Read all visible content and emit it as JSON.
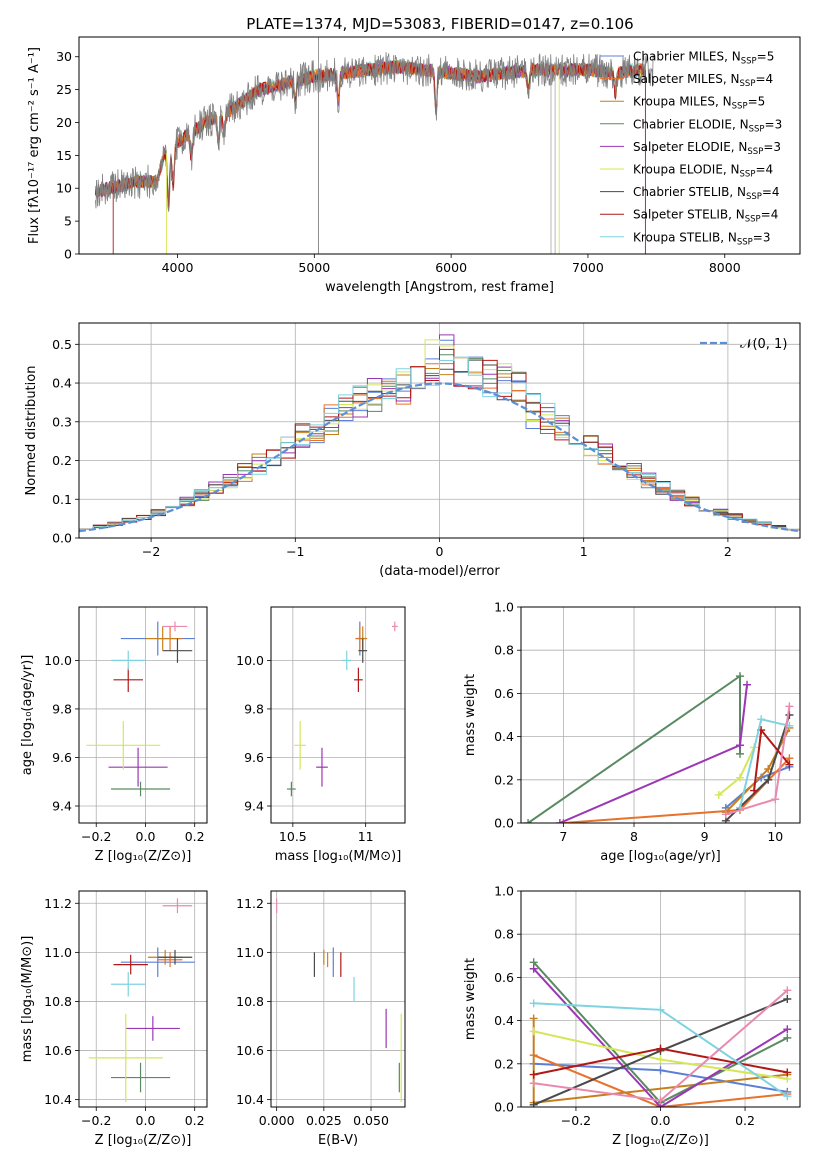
{
  "title": "PLATE=1374, MJD=53083, FIBERID=0147, z=0.106",
  "colors": {
    "chabrier_miles": "#5b7fd6",
    "salpeter_miles": "#e8712b",
    "kroupa_miles": "#c77f1e",
    "chabrier_elodie": "#5a8a62",
    "salpeter_elodie": "#9b36b5",
    "kroupa_elodie": "#d6e65a",
    "chabrier_stelib": "#4a4a4a",
    "salpeter_stelib": "#b21818",
    "kroupa_stelib": "#7fd3e0",
    "pink_extra": "#e88ab0"
  },
  "chart_data": [
    {
      "id": "spectrum",
      "type": "line",
      "xlabel": "wavelength [Angstrom, rest frame]",
      "ylabel": "Flux [fλ10⁻¹⁷ erg cm⁻² s⁻¹ A⁻¹]",
      "xlim": [
        3280,
        8550
      ],
      "ylim": [
        0,
        33
      ],
      "xticks": [
        4000,
        5000,
        6000,
        7000,
        8000
      ],
      "yticks": [
        0,
        5,
        10,
        15,
        20,
        25,
        30
      ],
      "legend": [
        {
          "label": "Chabrier MILES, N_SSP=5",
          "color": "#5b7fd6"
        },
        {
          "label": "Salpeter MILES, N_SSP=4",
          "color": "#e8712b"
        },
        {
          "label": "Kroupa MILES, N_SSP=5",
          "color": "#c77f1e"
        },
        {
          "label": "Chabrier ELODIE, N_SSP=3",
          "color": "#5a8a62"
        },
        {
          "label": "Salpeter ELODIE, N_SSP=3",
          "color": "#9b36b5"
        },
        {
          "label": "Kroupa ELODIE, N_SSP=4",
          "color": "#d6e65a"
        },
        {
          "label": "Chabrier STELIB, N_SSP=4",
          "color": "#4a4a4a"
        },
        {
          "label": "Salpeter STELIB, N_SSP=4",
          "color": "#b21818"
        },
        {
          "label": "Kroupa STELIB, N_SSP=3",
          "color": "#7fd3e0"
        }
      ],
      "legend_placement": "upper right",
      "continuum": [
        [
          3400,
          9.5
        ],
        [
          3500,
          10
        ],
        [
          3700,
          11
        ],
        [
          3850,
          11
        ],
        [
          3900,
          15
        ],
        [
          4000,
          17
        ],
        [
          4200,
          20
        ],
        [
          4300,
          21
        ],
        [
          4400,
          22
        ],
        [
          4600,
          25
        ],
        [
          4800,
          26
        ],
        [
          5000,
          27
        ],
        [
          5200,
          27.5
        ],
        [
          5400,
          28
        ],
        [
          5600,
          28.5
        ],
        [
          5800,
          28
        ],
        [
          6000,
          27.5
        ],
        [
          6200,
          27
        ],
        [
          6400,
          27.5
        ],
        [
          6600,
          28
        ],
        [
          6800,
          28
        ],
        [
          7000,
          28
        ],
        [
          7200,
          27.5
        ],
        [
          7400,
          28
        ]
      ]
    },
    {
      "id": "residuals",
      "type": "histogram",
      "xlabel": "(data-model)/error",
      "ylabel": "Normed distribution",
      "xlim": [
        -2.5,
        2.5
      ],
      "ylim": [
        0,
        0.555
      ],
      "xticks": [
        -2,
        -1,
        0,
        1,
        2
      ],
      "yticks": [
        0.0,
        0.1,
        0.2,
        0.3,
        0.4,
        0.5
      ],
      "legend": [
        {
          "label": "𝒩(0, 1)",
          "color": "#5b8fd6"
        }
      ],
      "legend_placement": "upper right",
      "bin_width": 0.1,
      "grid": true
    },
    {
      "id": "age_vs_Z",
      "type": "errorbar",
      "xlabel": "Z [log₁₀(Z/Z⊙)]",
      "ylabel": "age  [log₁₀(age/yr)]",
      "xlim": [
        -0.27,
        0.25
      ],
      "ylim": [
        9.33,
        10.22
      ],
      "xticks": [
        -0.2,
        0.0,
        0.2
      ],
      "xticklabels": [
        "−0.2",
        "0.0",
        "0.2"
      ],
      "yticks": [
        9.4,
        9.6,
        9.8,
        10.0
      ],
      "points": [
        {
          "color": "#5b7fd6",
          "x": 0.05,
          "y": 10.09,
          "xerr": 0.15,
          "yerr": 0.07
        },
        {
          "color": "#e8712b",
          "x": 0.1,
          "y": 10.09,
          "xerr": 0.05,
          "yerr": 0.05
        },
        {
          "color": "#c77f1e",
          "x": 0.07,
          "y": 10.09,
          "xerr": 0.07,
          "yerr": 0.05
        },
        {
          "color": "#5a8a62",
          "x": -0.02,
          "y": 9.47,
          "xerr": 0.12,
          "yerr": 0.03
        },
        {
          "color": "#9b36b5",
          "x": -0.03,
          "y": 9.56,
          "xerr": 0.12,
          "yerr": 0.08
        },
        {
          "color": "#d6e65a",
          "x": -0.09,
          "y": 9.65,
          "xerr": 0.15,
          "yerr": 0.1
        },
        {
          "color": "#4a4a4a",
          "x": 0.13,
          "y": 10.04,
          "xerr": 0.06,
          "yerr": 0.05
        },
        {
          "color": "#b21818",
          "x": -0.07,
          "y": 9.92,
          "xerr": 0.06,
          "yerr": 0.05
        },
        {
          "color": "#7fd3e0",
          "x": -0.07,
          "y": 10.0,
          "xerr": 0.07,
          "yerr": 0.04
        },
        {
          "color": "#e88ab0",
          "x": 0.12,
          "y": 10.14,
          "xerr": 0.05,
          "yerr": 0.02
        }
      ]
    },
    {
      "id": "age_vs_mass",
      "type": "errorbar",
      "xlabel": "mass [log₁₀(M/M⊙)]",
      "xlim": [
        10.35,
        11.27
      ],
      "ylim": [
        9.33,
        10.22
      ],
      "xticks": [
        10.5,
        11.0
      ],
      "yticks": [
        9.4,
        9.6,
        9.8,
        10.0
      ],
      "points": [
        {
          "color": "#5b7fd6",
          "x": 10.96,
          "y": 10.09,
          "xerr": 0.03,
          "yerr": 0.07
        },
        {
          "color": "#e8712b",
          "x": 10.96,
          "y": 10.09,
          "xerr": 0.03,
          "yerr": 0.05
        },
        {
          "color": "#c77f1e",
          "x": 10.98,
          "y": 10.09,
          "xerr": 0.03,
          "yerr": 0.05
        },
        {
          "color": "#5a8a62",
          "x": 10.49,
          "y": 9.47,
          "xerr": 0.03,
          "yerr": 0.03
        },
        {
          "color": "#9b36b5",
          "x": 10.7,
          "y": 9.56,
          "xerr": 0.04,
          "yerr": 0.08
        },
        {
          "color": "#d6e65a",
          "x": 10.55,
          "y": 9.65,
          "xerr": 0.04,
          "yerr": 0.1
        },
        {
          "color": "#4a4a4a",
          "x": 10.98,
          "y": 10.04,
          "xerr": 0.03,
          "yerr": 0.05
        },
        {
          "color": "#b21818",
          "x": 10.95,
          "y": 9.92,
          "xerr": 0.03,
          "yerr": 0.05
        },
        {
          "color": "#7fd3e0",
          "x": 10.87,
          "y": 10.0,
          "xerr": 0.03,
          "yerr": 0.04
        },
        {
          "color": "#e88ab0",
          "x": 11.2,
          "y": 10.14,
          "xerr": 0.02,
          "yerr": 0.02
        }
      ]
    },
    {
      "id": "weight_vs_age",
      "type": "line",
      "xlabel": "age  [log₁₀(age/yr)]",
      "ylabel": "mass weight",
      "xlim": [
        6.4,
        10.35
      ],
      "ylim": [
        0,
        1.0
      ],
      "xticks": [
        7,
        8,
        9,
        10
      ],
      "yticks": [
        0.0,
        0.2,
        0.4,
        0.6,
        0.8,
        1.0
      ],
      "series": [
        {
          "color": "#5b7fd6",
          "x": [
            9.3,
            9.8,
            10.2
          ],
          "y": [
            0.07,
            0.21,
            0.26
          ]
        },
        {
          "color": "#e8712b",
          "x": [
            7.0,
            9.5,
            10.2
          ],
          "y": [
            0.0,
            0.06,
            0.3
          ]
        },
        {
          "color": "#c77f1e",
          "x": [
            9.3,
            9.9,
            10.2
          ],
          "y": [
            0.05,
            0.25,
            0.44
          ]
        },
        {
          "color": "#5a8a62",
          "x": [
            6.5,
            9.5,
            9.5
          ],
          "y": [
            0.0,
            0.68,
            0.32
          ]
        },
        {
          "color": "#9b36b5",
          "x": [
            6.95,
            9.5,
            9.6
          ],
          "y": [
            0.0,
            0.36,
            0.64
          ]
        },
        {
          "color": "#d6e65a",
          "x": [
            9.2,
            9.5,
            9.7
          ],
          "y": [
            0.13,
            0.21,
            0.35
          ]
        },
        {
          "color": "#4a4a4a",
          "x": [
            9.3,
            9.9,
            10.2
          ],
          "y": [
            0.01,
            0.2,
            0.5
          ]
        },
        {
          "color": "#b21818",
          "x": [
            9.7,
            9.8,
            10.2
          ],
          "y": [
            0.15,
            0.43,
            0.27
          ]
        },
        {
          "color": "#7fd3e0",
          "x": [
            9.5,
            9.8,
            10.2
          ],
          "y": [
            0.07,
            0.48,
            0.45
          ]
        },
        {
          "color": "#e88ab0",
          "x": [
            9.3,
            10.0,
            10.2
          ],
          "y": [
            0.04,
            0.11,
            0.54
          ]
        }
      ]
    },
    {
      "id": "mass_vs_Z",
      "type": "errorbar",
      "xlabel": "Z [log₁₀(Z/Z⊙)]",
      "ylabel": "mass [log₁₀(M/M⊙)]",
      "xlim": [
        -0.27,
        0.25
      ],
      "ylim": [
        10.37,
        11.25
      ],
      "xticks": [
        -0.2,
        0.0,
        0.2
      ],
      "xticklabels": [
        "−0.2",
        "0.0",
        "0.2"
      ],
      "yticks": [
        10.4,
        10.6,
        10.8,
        11.0,
        11.2
      ],
      "points": [
        {
          "color": "#5b7fd6",
          "x": 0.05,
          "y": 10.96,
          "xerr": 0.15,
          "yerr": 0.06
        },
        {
          "color": "#e8712b",
          "x": 0.1,
          "y": 10.97,
          "xerr": 0.05,
          "yerr": 0.03
        },
        {
          "color": "#c77f1e",
          "x": 0.08,
          "y": 10.98,
          "xerr": 0.07,
          "yerr": 0.03
        },
        {
          "color": "#5a8a62",
          "x": -0.02,
          "y": 10.49,
          "xerr": 0.12,
          "yerr": 0.06
        },
        {
          "color": "#9b36b5",
          "x": 0.03,
          "y": 10.69,
          "xerr": 0.11,
          "yerr": 0.05
        },
        {
          "color": "#d6e65a",
          "x": -0.08,
          "y": 10.57,
          "xerr": 0.15,
          "yerr": 0.18
        },
        {
          "color": "#4a4a4a",
          "x": 0.12,
          "y": 10.98,
          "xerr": 0.07,
          "yerr": 0.03
        },
        {
          "color": "#b21818",
          "x": -0.06,
          "y": 10.95,
          "xerr": 0.07,
          "yerr": 0.04
        },
        {
          "color": "#7fd3e0",
          "x": -0.07,
          "y": 10.87,
          "xerr": 0.07,
          "yerr": 0.05
        },
        {
          "color": "#e88ab0",
          "x": 0.13,
          "y": 11.19,
          "xerr": 0.06,
          "yerr": 0.03
        }
      ]
    },
    {
      "id": "mass_vs_ebv",
      "type": "errorbar",
      "xlabel": "E(B-V)",
      "xlim": [
        -0.003,
        0.068
      ],
      "ylim": [
        10.37,
        11.25
      ],
      "xticks": [
        0.0,
        0.025,
        0.05
      ],
      "xticklabels": [
        "0.000",
        "0.025",
        "0.050"
      ],
      "yticks": [
        10.4,
        10.6,
        10.8,
        11.0,
        11.2
      ],
      "points": [
        {
          "color": "#5b7fd6",
          "x": 0.03,
          "y": 10.96,
          "xerr": 0,
          "yerr": 0.06
        },
        {
          "color": "#e8712b",
          "x": 0.027,
          "y": 10.97,
          "xerr": 0,
          "yerr": 0.03
        },
        {
          "color": "#c77f1e",
          "x": 0.025,
          "y": 10.98,
          "xerr": 0,
          "yerr": 0.03
        },
        {
          "color": "#5a8a62",
          "x": 0.065,
          "y": 10.49,
          "xerr": 0,
          "yerr": 0.06
        },
        {
          "color": "#9b36b5",
          "x": 0.058,
          "y": 10.69,
          "xerr": 0,
          "yerr": 0.08
        },
        {
          "color": "#d6e65a",
          "x": 0.066,
          "y": 10.57,
          "xerr": 0,
          "yerr": 0.18
        },
        {
          "color": "#4a4a4a",
          "x": 0.02,
          "y": 10.95,
          "xerr": 0,
          "yerr": 0.05
        },
        {
          "color": "#b21818",
          "x": 0.034,
          "y": 10.95,
          "xerr": 0,
          "yerr": 0.05
        },
        {
          "color": "#7fd3e0",
          "x": 0.041,
          "y": 10.85,
          "xerr": 0,
          "yerr": 0.05
        },
        {
          "color": "#e88ab0",
          "x": 0.0,
          "y": 11.19,
          "xerr": 0,
          "yerr": 0.03
        }
      ]
    },
    {
      "id": "weight_vs_Z",
      "type": "line",
      "xlabel": "Z [log₁₀(Z/Z⊙)]",
      "ylabel": "mass weight",
      "xlim": [
        -0.33,
        0.33
      ],
      "ylim": [
        0,
        1.0
      ],
      "xticks": [
        -0.2,
        0.0,
        0.2
      ],
      "xticklabels": [
        "−0.2",
        "0.0",
        "0.2"
      ],
      "yticks": [
        0.0,
        0.2,
        0.4,
        0.6,
        0.8,
        1.0
      ],
      "series": [
        {
          "color": "#5b7fd6",
          "x": [
            -0.3,
            0.0,
            0.3
          ],
          "y": [
            0.2,
            0.17,
            0.07
          ]
        },
        {
          "color": "#e8712b",
          "x": [
            -0.3,
            0.0,
            0.3
          ],
          "y": [
            0.24,
            0.0,
            0.06
          ]
        },
        {
          "color": "#c77f1e",
          "x": [
            -0.3,
            -0.3,
            0.3
          ],
          "y": [
            0.41,
            0.02,
            0.15
          ]
        },
        {
          "color": "#5a8a62",
          "x": [
            -0.3,
            0.0,
            0.3
          ],
          "y": [
            0.67,
            0.02,
            0.32
          ]
        },
        {
          "color": "#9b36b5",
          "x": [
            -0.3,
            0.0,
            0.3
          ],
          "y": [
            0.64,
            0.0,
            0.36
          ]
        },
        {
          "color": "#d6e65a",
          "x": [
            -0.3,
            0.0,
            0.3
          ],
          "y": [
            0.35,
            0.22,
            0.13
          ]
        },
        {
          "color": "#4a4a4a",
          "x": [
            -0.3,
            0.0,
            0.3
          ],
          "y": [
            0.01,
            0.26,
            0.5
          ]
        },
        {
          "color": "#b21818",
          "x": [
            -0.3,
            0.0,
            0.3
          ],
          "y": [
            0.15,
            0.27,
            0.16
          ]
        },
        {
          "color": "#7fd3e0",
          "x": [
            -0.3,
            0.0,
            0.3
          ],
          "y": [
            0.48,
            0.45,
            0.05
          ]
        },
        {
          "color": "#e88ab0",
          "x": [
            -0.3,
            0.0,
            0.3
          ],
          "y": [
            0.11,
            0.03,
            0.54
          ]
        }
      ]
    }
  ]
}
